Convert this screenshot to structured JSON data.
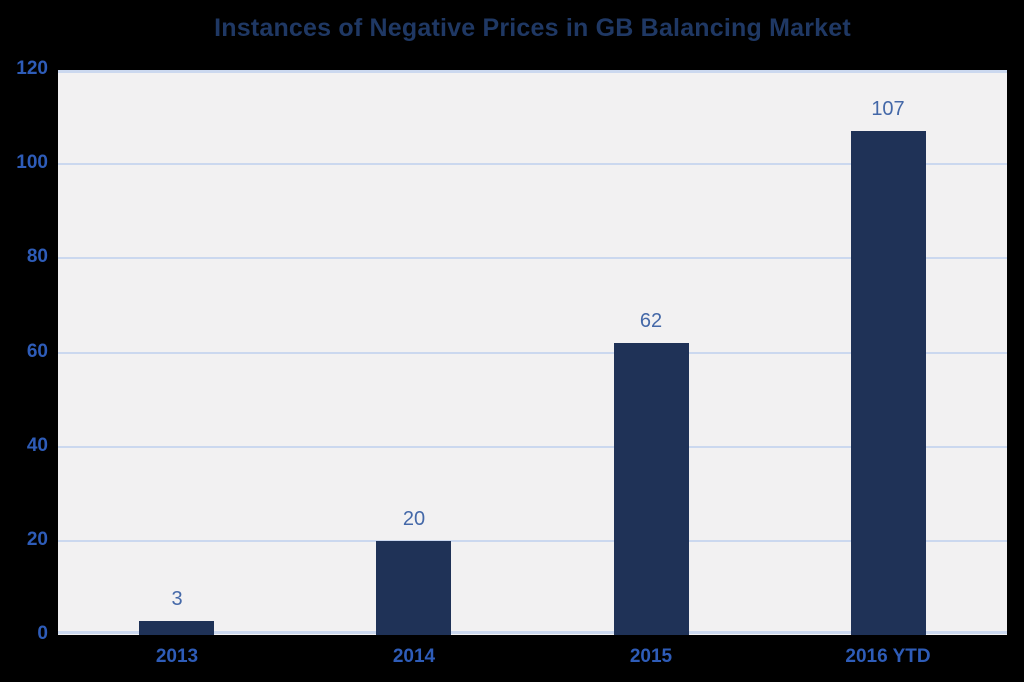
{
  "chart_data": {
    "type": "bar",
    "title": "Instances of Negative Prices in GB Balancing Market",
    "categories": [
      "2013",
      "2014",
      "2015",
      "2016 YTD"
    ],
    "values": [
      3,
      20,
      62,
      107
    ],
    "value_labels": [
      "3",
      "20",
      "62",
      "107"
    ],
    "xlabel": "",
    "ylabel": "",
    "ylim": [
      0,
      120
    ],
    "yticks": [
      0,
      20,
      40,
      60,
      80,
      100,
      120
    ],
    "ytick_labels": [
      "0",
      "20",
      "40",
      "60",
      "80",
      "100",
      "120"
    ],
    "grid": "horizontal",
    "legend": "none",
    "colors": {
      "page_background": "#000000",
      "plot_background": "#F2F1F2",
      "gridline": "#CBD8EF",
      "bar_fill": "#1F3257",
      "title_text": "#1F3864",
      "axis_tick_text": "#2E5CB8",
      "data_label_text": "#4468A8"
    }
  }
}
